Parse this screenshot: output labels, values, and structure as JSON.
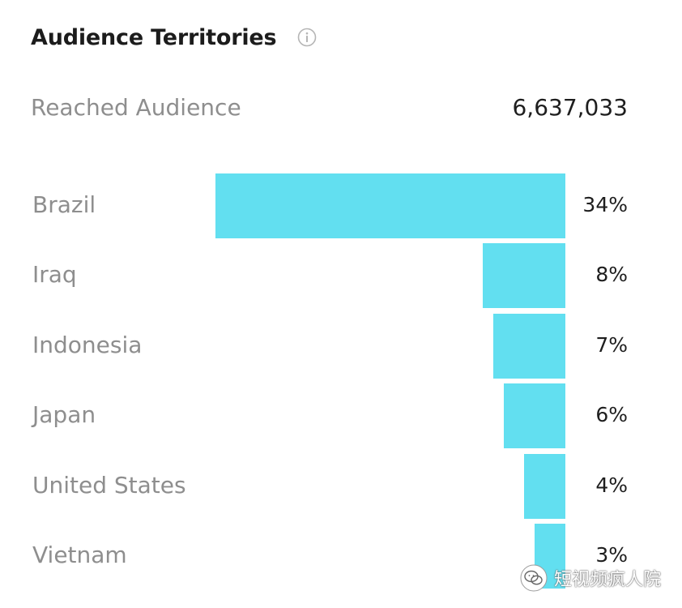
{
  "header": {
    "title": "Audience Territories",
    "info_icon": "info-circle-icon"
  },
  "summary": {
    "label": "Reached Audience",
    "value": "6,637,033"
  },
  "chart_data": {
    "type": "bar",
    "orientation": "horizontal",
    "categories": [
      "Brazil",
      "Iraq",
      "Indonesia",
      "Japan",
      "United States",
      "Vietnam"
    ],
    "values": [
      34,
      8,
      7,
      6,
      4,
      3
    ],
    "value_labels": [
      "34%",
      "8%",
      "7%",
      "6%",
      "4%",
      "3%"
    ],
    "unit": "%",
    "bar_color": "#62dff0",
    "alignment": "right"
  },
  "watermark": {
    "icon": "wechat-icon",
    "text": "短视频疯人院"
  }
}
